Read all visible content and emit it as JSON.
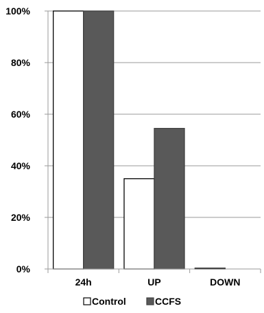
{
  "chart_data": {
    "type": "bar",
    "categories": [
      "24h",
      "UP",
      "DOWN"
    ],
    "series": [
      {
        "name": "Control",
        "values": [
          100,
          35,
          0.3
        ],
        "color": "#ffffff",
        "stroke": "#000000"
      },
      {
        "name": "CCFS",
        "values": [
          100,
          54.5,
          0
        ],
        "color": "#595959",
        "stroke": "#404040"
      }
    ],
    "title": "",
    "xlabel": "",
    "ylabel": "",
    "ylim": [
      0,
      100
    ],
    "yticks": [
      {
        "value": 0,
        "label": "0%"
      },
      {
        "value": 20,
        "label": "20%"
      },
      {
        "value": 40,
        "label": "40%"
      },
      {
        "value": 60,
        "label": "60%"
      },
      {
        "value": 80,
        "label": "80%"
      },
      {
        "value": 100,
        "label": "100%"
      }
    ],
    "grid": true,
    "legend_position": "bottom"
  }
}
